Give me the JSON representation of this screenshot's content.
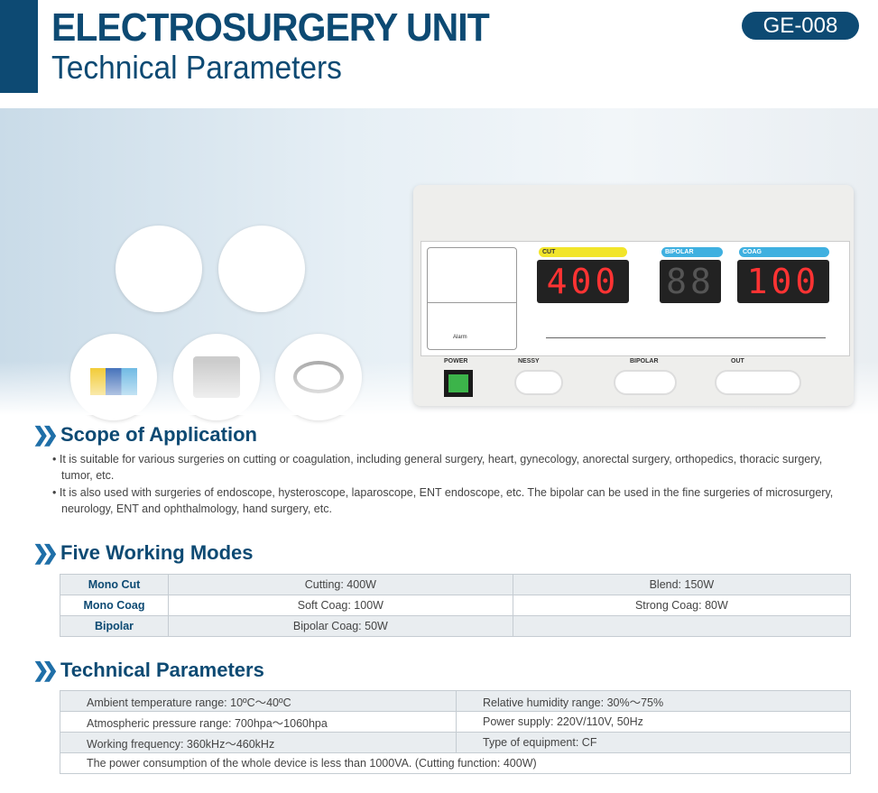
{
  "header": {
    "title": "ELECTROSURGERY UNIT",
    "subtitle": "Technical Parameters",
    "model": "GE-008"
  },
  "device": {
    "cut_label": "CUT",
    "bipolar_label": "BIPOLAR",
    "coag_label": "COAG",
    "cut_display": "400",
    "bipolar_display": "88",
    "coag_display": "100",
    "power_label": "POWER",
    "nessy_label": "NESSY",
    "bipolar_port_label": "BIPOLAR",
    "out_label": "OUT",
    "alarm_label": "Alarm",
    "colors": {
      "cut": "#f2e52a",
      "bipolar": "#3fb0e0",
      "coag": "#3fb0e0",
      "display_digits": "#ff3333",
      "power_switch": "#3cb44a"
    }
  },
  "scope": {
    "heading": "Scope of Application",
    "bullets": [
      "• It is suitable for various surgeries on cutting or coagulation, including general surgery, heart, gynecology, anorectal surgery, orthopedics, thoracic surgery, tumor, etc.",
      "• It is also used with surgeries of endoscope, hysteroscope, laparoscope, ENT endoscope, etc. The bipolar can be used in the fine surgeries of microsurgery, neurology, ENT and ophthalmology, hand surgery, etc."
    ]
  },
  "modes": {
    "heading": "Five Working Modes",
    "rows": [
      {
        "mode": "Mono Cut",
        "a": "Cutting: 400W",
        "b": "Blend: 150W"
      },
      {
        "mode": "Mono Coag",
        "a": "Soft Coag: 100W",
        "b": "Strong Coag: 80W"
      },
      {
        "mode": "Bipolar",
        "a": "Bipolar Coag: 50W",
        "b": ""
      }
    ]
  },
  "params": {
    "heading": "Technical Parameters",
    "rows": [
      [
        "Ambient temperature range: 10ºC～40ºC",
        "Relative humidity range: 30%～75%"
      ],
      [
        "Atmospheric pressure range: 700hpa～1060hpa",
        "Power supply: 220V/110V, 50Hz"
      ],
      [
        "Working frequency: 360kHz～460kHz",
        "Type of equipment: CF"
      ]
    ],
    "footer": "The power consumption of the whole device is less than 1000VA. (Cutting function: 400W)"
  },
  "colors": {
    "brand": "#0d4a73",
    "table_shade": "#e9edf0"
  }
}
